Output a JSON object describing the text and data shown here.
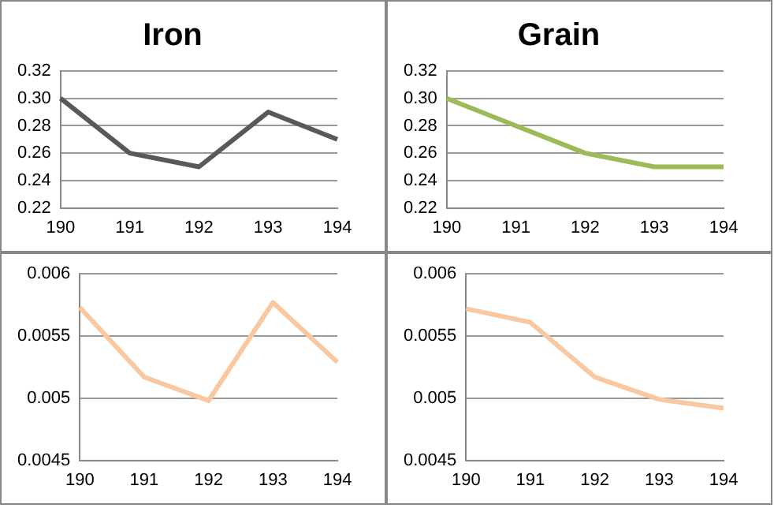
{
  "chart_data": [
    {
      "type": "line",
      "title": "Iron",
      "categories": [
        "190",
        "191",
        "192",
        "193",
        "194"
      ],
      "series": [
        {
          "color": "#595959",
          "values": [
            0.3,
            0.26,
            0.25,
            0.29,
            0.27
          ]
        }
      ],
      "ylim": [
        0.22,
        0.32
      ],
      "yticks": [
        {
          "value": 0.22,
          "label": "0.22"
        },
        {
          "value": 0.24,
          "label": "0.24"
        },
        {
          "value": 0.26,
          "label": "0.26"
        },
        {
          "value": 0.28,
          "label": "0.28"
        },
        {
          "value": 0.3,
          "label": "0.30"
        },
        {
          "value": 0.32,
          "label": "0.32"
        }
      ],
      "grid": "y",
      "legend": false,
      "marker": "none"
    },
    {
      "type": "line",
      "title": "Grain",
      "categories": [
        "190",
        "191",
        "192",
        "193",
        "194"
      ],
      "series": [
        {
          "color": "#9bbb59",
          "values": [
            0.3,
            0.28,
            0.26,
            0.25,
            0.25
          ]
        }
      ],
      "ylim": [
        0.22,
        0.32
      ],
      "yticks": [
        {
          "value": 0.22,
          "label": "0.22"
        },
        {
          "value": 0.24,
          "label": "0.24"
        },
        {
          "value": 0.26,
          "label": "0.26"
        },
        {
          "value": 0.28,
          "label": "0.28"
        },
        {
          "value": 0.3,
          "label": "0.30"
        },
        {
          "value": 0.32,
          "label": "0.32"
        }
      ],
      "grid": "y",
      "legend": false,
      "marker": "none"
    },
    {
      "type": "line",
      "categories": [
        "190",
        "191",
        "192",
        "193",
        "194"
      ],
      "series": [
        {
          "color": "#f9c8a0",
          "values": [
            0.00573,
            0.00517,
            0.00498,
            0.00577,
            0.00529
          ]
        }
      ],
      "ylim": [
        0.0045,
        0.006
      ],
      "yticks": [
        0.0045,
        0.005,
        0.0055,
        0.006
      ],
      "grid": "y",
      "legend": false,
      "marker": "none"
    },
    {
      "type": "line",
      "categories": [
        "190",
        "191",
        "192",
        "193",
        "194"
      ],
      "series": [
        {
          "color": "#f9c8a0",
          "values": [
            0.00572,
            0.00561,
            0.00517,
            0.00499,
            0.00492
          ]
        }
      ],
      "ylim": [
        0.0045,
        0.006
      ],
      "yticks": [
        0.0045,
        0.005,
        0.0055,
        0.006
      ],
      "grid": "y",
      "legend": false,
      "marker": "none"
    }
  ]
}
